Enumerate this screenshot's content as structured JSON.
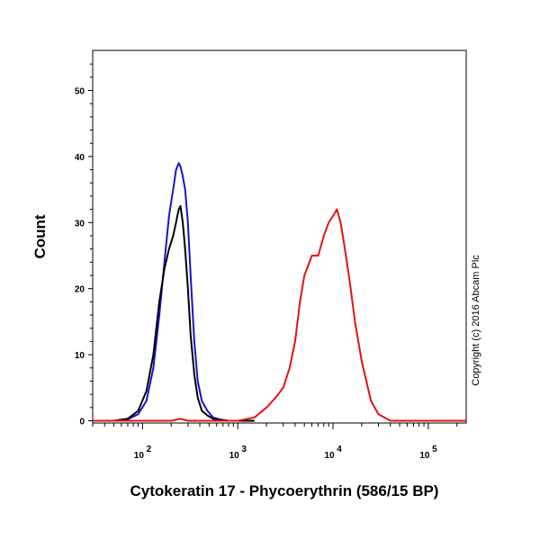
{
  "chart_data": {
    "type": "line",
    "xlabel": "Cytokeratin 17 - Phycoerythrin (586/15 BP)",
    "ylabel": "Count",
    "x_scale": "log",
    "xlim": [
      30,
      250000
    ],
    "ylim": [
      0,
      56
    ],
    "x_ticks": [
      {
        "value": 100,
        "base": "10",
        "exp": "2"
      },
      {
        "value": 1000,
        "base": "10",
        "exp": "3"
      },
      {
        "value": 10000,
        "base": "10",
        "exp": "4"
      },
      {
        "value": 100000,
        "base": "10",
        "exp": "5"
      }
    ],
    "y_ticks": [
      0,
      10,
      20,
      30,
      40,
      50
    ],
    "grid": false,
    "legend": "none",
    "series": [
      {
        "color": "#1a14c8",
        "x": [
          50,
          70,
          90,
          110,
          130,
          150,
          170,
          190,
          210,
          225,
          240,
          250,
          265,
          280,
          300,
          320,
          350,
          380,
          420,
          480,
          550,
          650,
          800,
          1000,
          1500
        ],
        "y": [
          0,
          0.2,
          1,
          3,
          8,
          16,
          24,
          31,
          35,
          38,
          39,
          38.5,
          37,
          35,
          30,
          22,
          12,
          6,
          3,
          1.5,
          0.5,
          0.2,
          0,
          0,
          0
        ]
      },
      {
        "color": "#000000",
        "x": [
          50,
          70,
          90,
          110,
          130,
          150,
          170,
          190,
          210,
          225,
          240,
          250,
          265,
          280,
          300,
          320,
          350,
          380,
          420,
          480,
          550,
          650,
          800,
          1000,
          1500
        ],
        "y": [
          0,
          0.3,
          1.5,
          4.5,
          10,
          18,
          23,
          26,
          28,
          30,
          32,
          32.5,
          30,
          26,
          20,
          13,
          7,
          3.5,
          1.5,
          0.8,
          0.3,
          0.1,
          0,
          0,
          0
        ]
      },
      {
        "color": "#e01414",
        "x": [
          30,
          100,
          200,
          250,
          300,
          500,
          1000,
          1500,
          2000,
          2500,
          3000,
          3500,
          4000,
          4500,
          5000,
          6000,
          7000,
          8000,
          9000,
          10000,
          11000,
          12000,
          13000,
          15000,
          17000,
          20000,
          25000,
          30000,
          40000,
          60000,
          100000,
          250000
        ],
        "y": [
          0,
          0,
          0,
          0.3,
          0,
          0,
          0,
          0.5,
          2,
          3.5,
          5,
          8,
          12,
          18,
          22,
          25,
          25,
          28,
          30,
          31,
          32,
          30,
          27,
          21,
          15,
          9,
          3,
          1,
          0,
          0,
          0,
          0
        ]
      }
    ]
  },
  "copyright": "Copyright (c) 2016 Abcam Plc"
}
